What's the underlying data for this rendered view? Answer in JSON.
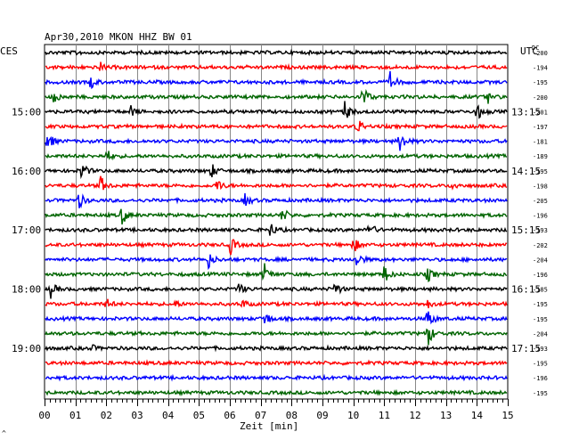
{
  "chart_data": {
    "type": "line",
    "title": "Apr30,2010   MKON HHZ BW 01",
    "left_tz": "CES",
    "right_tz": "UTC",
    "dc_label": "DC",
    "xlabel": "Zeit [min]",
    "corner_mark": "^",
    "x_ticks": [
      "00",
      "01",
      "02",
      "03",
      "04",
      "05",
      "06",
      "07",
      "08",
      "09",
      "10",
      "11",
      "12",
      "13",
      "14",
      "15"
    ],
    "xlim": [
      0,
      15
    ],
    "left_hour_labels": [
      "15:00",
      "16:00",
      "17:00",
      "18:00",
      "19:00"
    ],
    "right_hour_labels": [
      "13:15",
      "14:15",
      "15:15",
      "16:15",
      "17:15"
    ],
    "trace_colors": [
      "#000000",
      "#ff0000",
      "#0000ff",
      "#006400"
    ],
    "dc_offsets": [
      "-200",
      "-194",
      "-195",
      "-200",
      "-201",
      "-197",
      "-181",
      "-189",
      "-195",
      "-198",
      "-205",
      "-196",
      "-193",
      "-202",
      "-204",
      "-196",
      "-185",
      "-195",
      "-195",
      "-204",
      "-193",
      "-195",
      "-196",
      "-195"
    ],
    "events": [
      {
        "trace": 0,
        "minute": 1.0,
        "amp": 2
      },
      {
        "trace": 1,
        "minute": 1.8,
        "amp": 5
      },
      {
        "trace": 2,
        "minute": 1.5,
        "amp": 7
      },
      {
        "trace": 2,
        "minute": 11.2,
        "amp": 12
      },
      {
        "trace": 3,
        "minute": 0.3,
        "amp": 8
      },
      {
        "trace": 3,
        "minute": 10.3,
        "amp": 15
      },
      {
        "trace": 3,
        "minute": 14.3,
        "amp": 10
      },
      {
        "trace": 4,
        "minute": 2.8,
        "amp": 6
      },
      {
        "trace": 4,
        "minute": 9.7,
        "amp": 14
      },
      {
        "trace": 4,
        "minute": 14.0,
        "amp": 11
      },
      {
        "trace": 5,
        "minute": 10.1,
        "amp": 12
      },
      {
        "trace": 6,
        "minute": 0.1,
        "amp": 12
      },
      {
        "trace": 6,
        "minute": 11.5,
        "amp": 16
      },
      {
        "trace": 7,
        "minute": 2.0,
        "amp": 8
      },
      {
        "trace": 8,
        "minute": 1.2,
        "amp": 11
      },
      {
        "trace": 8,
        "minute": 5.4,
        "amp": 9
      },
      {
        "trace": 9,
        "minute": 1.8,
        "amp": 12
      },
      {
        "trace": 9,
        "minute": 5.6,
        "amp": 8
      },
      {
        "trace": 9,
        "minute": 13.2,
        "amp": 5
      },
      {
        "trace": 10,
        "minute": 1.1,
        "amp": 11
      },
      {
        "trace": 10,
        "minute": 6.5,
        "amp": 8
      },
      {
        "trace": 11,
        "minute": 2.5,
        "amp": 12
      },
      {
        "trace": 11,
        "minute": 7.7,
        "amp": 9
      },
      {
        "trace": 12,
        "minute": 7.3,
        "amp": 9
      },
      {
        "trace": 12,
        "minute": 10.5,
        "amp": 10
      },
      {
        "trace": 13,
        "minute": 6.0,
        "amp": 12
      },
      {
        "trace": 13,
        "minute": 10.0,
        "amp": 10
      },
      {
        "trace": 14,
        "minute": 5.3,
        "amp": 10
      },
      {
        "trace": 14,
        "minute": 10.1,
        "amp": 11
      },
      {
        "trace": 15,
        "minute": 7.1,
        "amp": 14
      },
      {
        "trace": 15,
        "minute": 11.0,
        "amp": 11
      },
      {
        "trace": 15,
        "minute": 12.4,
        "amp": 9
      },
      {
        "trace": 16,
        "minute": 0.2,
        "amp": 9
      },
      {
        "trace": 16,
        "minute": 6.3,
        "amp": 7
      },
      {
        "trace": 16,
        "minute": 9.4,
        "amp": 9
      },
      {
        "trace": 17,
        "minute": 2.0,
        "amp": 6
      },
      {
        "trace": 17,
        "minute": 4.2,
        "amp": 5
      },
      {
        "trace": 17,
        "minute": 6.4,
        "amp": 5
      },
      {
        "trace": 17,
        "minute": 12.4,
        "amp": 5
      },
      {
        "trace": 18,
        "minute": 7.1,
        "amp": 12
      },
      {
        "trace": 18,
        "minute": 12.4,
        "amp": 14
      },
      {
        "trace": 19,
        "minute": 12.4,
        "amp": 16
      },
      {
        "trace": 20,
        "minute": 1.5,
        "amp": 4
      }
    ]
  }
}
